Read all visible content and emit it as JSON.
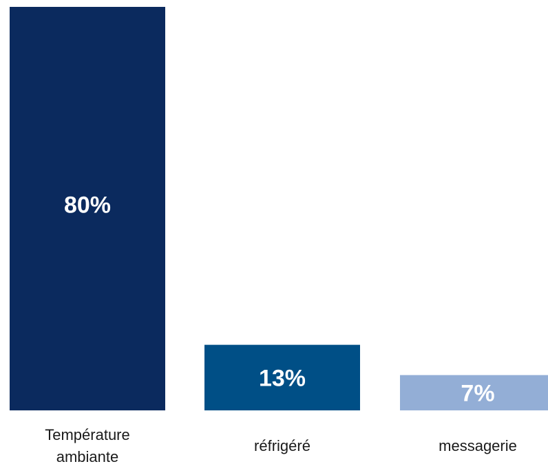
{
  "chart_data": {
    "type": "bar",
    "categories": [
      [
        "Température",
        "ambiante"
      ],
      [
        "réfrigéré"
      ],
      [
        "messagerie"
      ]
    ],
    "values": [
      80,
      13,
      7
    ],
    "value_labels": [
      "80%",
      "13%",
      "7%"
    ],
    "colors": [
      "#0b2a5e",
      "#004f86",
      "#93aed6"
    ],
    "value_label_colors": [
      "#ffffff",
      "#ffffff",
      "#ffffff"
    ],
    "ylim": [
      0,
      80
    ],
    "grid": false,
    "title": "",
    "xlabel": "",
    "ylabel": ""
  }
}
